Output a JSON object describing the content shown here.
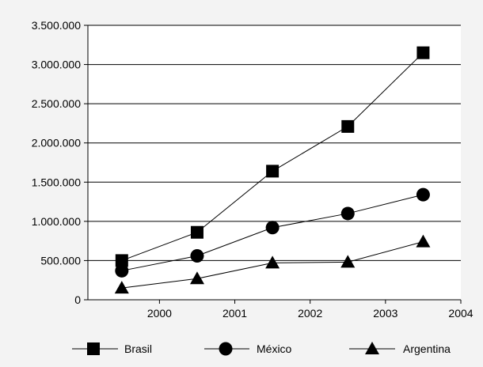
{
  "colors": {
    "background": "#f3f3f3",
    "plot_background": "#ffffff",
    "axis": "#000000",
    "grid": "#000000",
    "series": "#000000"
  },
  "chart_data": {
    "type": "line",
    "title": "",
    "xlabel": "",
    "ylabel": "",
    "xlim": [
      1999.05,
      2004
    ],
    "ylim": [
      0,
      3500000
    ],
    "x_ticks": [
      2000,
      2001,
      2002,
      2003,
      2004
    ],
    "x_tick_labels": [
      "2000",
      "2001",
      "2002",
      "2003",
      "2004"
    ],
    "y_ticks": [
      0,
      500000,
      1000000,
      1500000,
      2000000,
      2500000,
      3000000,
      3500000
    ],
    "y_tick_labels": [
      "0",
      "500.000",
      "1.000.000",
      "1.500.000",
      "2.000.000",
      "2.500.000",
      "3.000.000",
      "3.500.000"
    ],
    "grid": "horizontal",
    "legend_position": "bottom",
    "x": [
      1999.5,
      2000.5,
      2001.5,
      2002.5,
      2003.5
    ],
    "series": [
      {
        "name": "Brasil",
        "marker": "square",
        "values": [
          500000,
          860000,
          1640000,
          2210000,
          3150000
        ]
      },
      {
        "name": "México",
        "marker": "circle",
        "values": [
          370000,
          560000,
          920000,
          1100000,
          1340000
        ]
      },
      {
        "name": "Argentina",
        "marker": "triangle",
        "values": [
          150000,
          270000,
          470000,
          480000,
          740000
        ]
      }
    ]
  }
}
